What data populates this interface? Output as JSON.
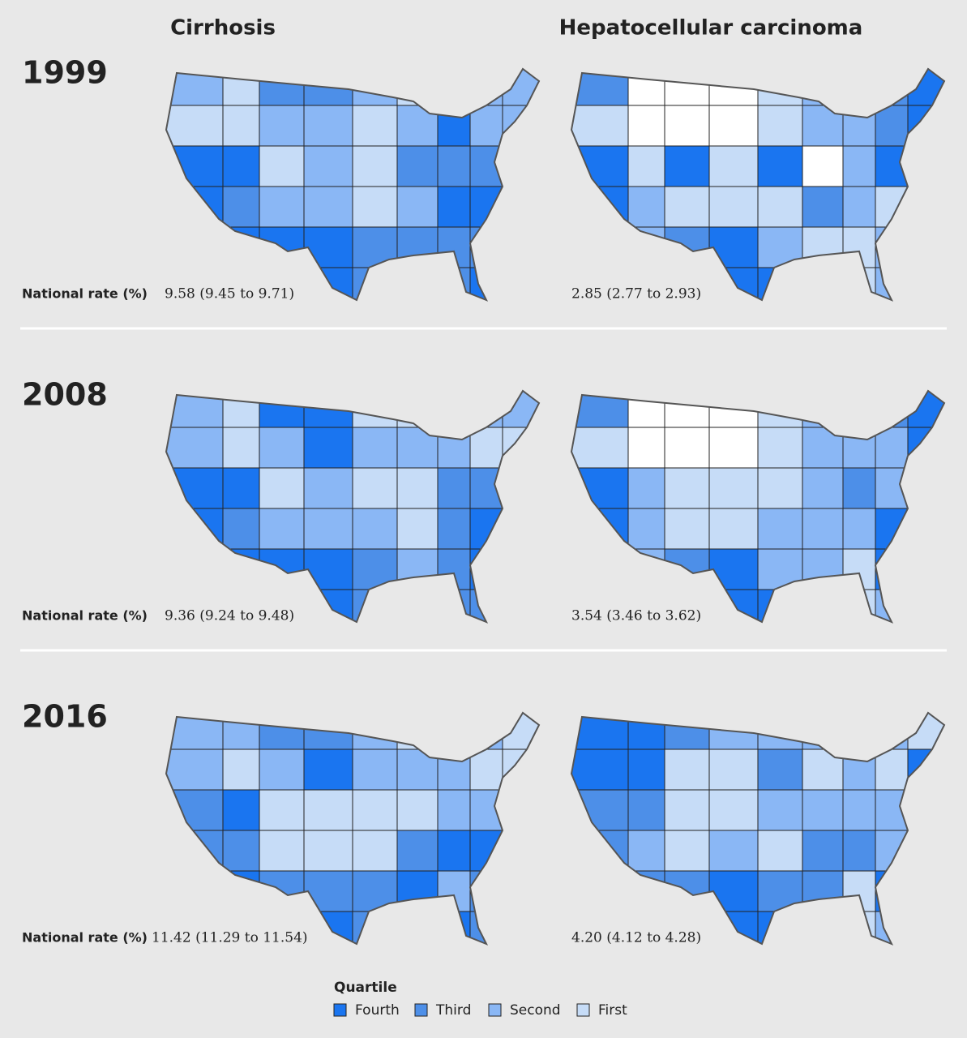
{
  "columns": [
    "Cirrhosis",
    "Hepatocellular carcinoma"
  ],
  "rows": [
    {
      "year": "1999",
      "rate_label": "National rate (%)",
      "rates": [
        "9.58 (9.45 to 9.71)",
        "2.85 (2.77 to 2.93)"
      ]
    },
    {
      "year": "2008",
      "rate_label": "National rate (%)",
      "rates": [
        "9.36 (9.24 to 9.48)",
        "3.54 (3.46 to 3.62)"
      ]
    },
    {
      "year": "2016",
      "rate_label": "National rate (%)",
      "rates": [
        "11.42 (11.29 to 11.54)",
        "4.20 (4.12 to 4.28)"
      ]
    }
  ],
  "legend": {
    "title": "Quartile",
    "items": [
      "Fourth",
      "Third",
      "Second",
      "First"
    ]
  }
}
